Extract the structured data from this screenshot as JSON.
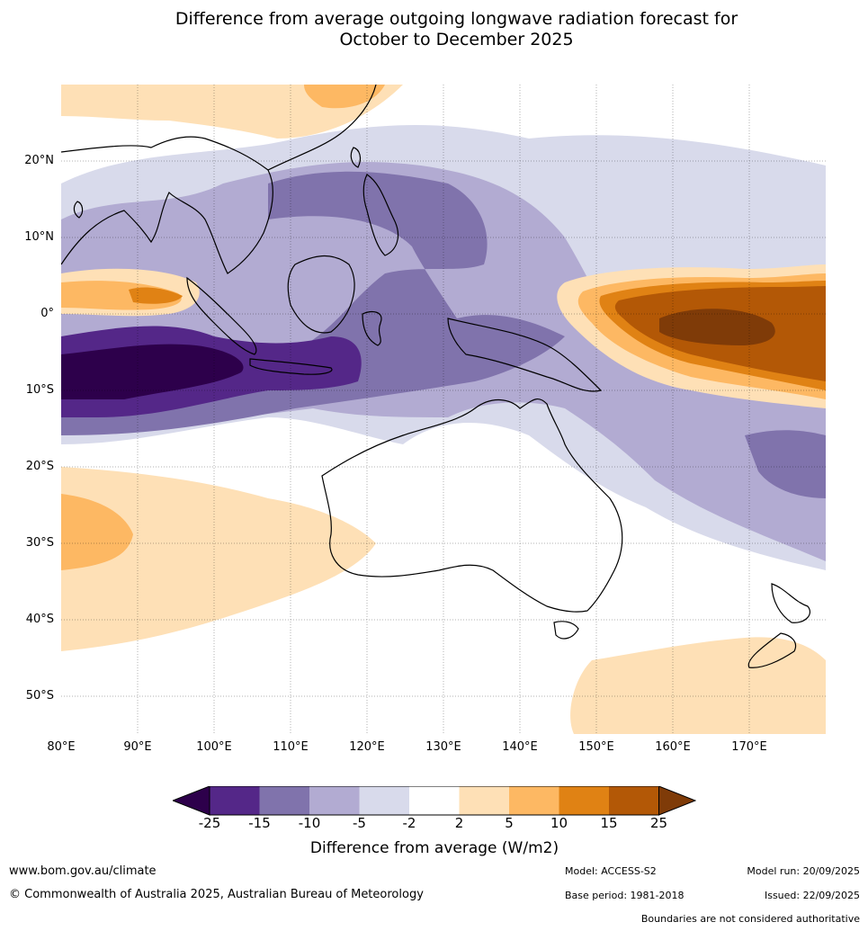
{
  "title_line1": "Difference from average outgoing longwave radiation forecast for",
  "title_line2": "October to December 2025",
  "lat_labels": [
    "20°N",
    "10°N",
    "0°",
    "10°S",
    "20°S",
    "30°S",
    "40°S",
    "50°S"
  ],
  "lon_labels": [
    "80°E",
    "90°E",
    "100°E",
    "110°E",
    "120°E",
    "130°E",
    "140°E",
    "150°E",
    "160°E",
    "170°E"
  ],
  "colorbar": {
    "ticks": [
      "-25",
      "-15",
      "-10",
      "-5",
      "-2",
      "2",
      "5",
      "10",
      "15",
      "25"
    ],
    "colors": [
      "#2d004b",
      "#542788",
      "#8073ac",
      "#b2abd2",
      "#d8daeb",
      "#ffffff",
      "#fee0b6",
      "#fdb863",
      "#e08214",
      "#b35806",
      "#7f3b08"
    ],
    "label": "Difference from average (W/m2)"
  },
  "footer": {
    "website": "www.bom.gov.au/climate",
    "copyright": "© Commonwealth of Australia 2025, Australian Bureau of Meteorology",
    "model": "Model: ACCESS-S2",
    "base_period": "Base period: 1981-2018",
    "model_run": "Model run: 20/09/2025",
    "issued": "Issued: 22/09/2025",
    "disclaimer": "Boundaries are not considered authoritative"
  },
  "map_extent": {
    "lon_min": 80,
    "lon_max": 180,
    "lat_min": -55,
    "lat_max": 30
  }
}
